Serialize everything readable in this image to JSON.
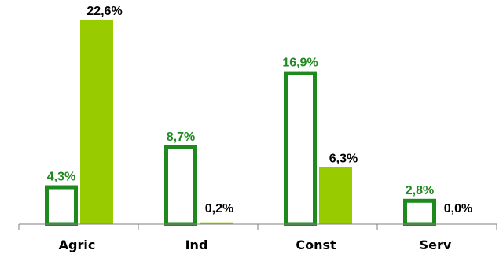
{
  "chart_data": {
    "type": "bar",
    "categories": [
      "Agric",
      "Ind",
      "Const",
      "Serv"
    ],
    "series": [
      {
        "values": [
          4.3,
          8.7,
          16.9,
          2.8
        ],
        "labels": [
          "4,3%",
          "8,7%",
          "16,9%",
          "2,8%"
        ],
        "color": "#1e8a1e",
        "label_color": "#1e8a1e",
        "style": "outline"
      },
      {
        "values": [
          22.6,
          0.2,
          6.3,
          0.0
        ],
        "labels": [
          "22,6%",
          "0,2%",
          "6,3%",
          "0,0%"
        ],
        "color": "#99cc00",
        "label_color": "#000000",
        "style": "filled"
      }
    ],
    "title": "",
    "xlabel": "",
    "ylabel": "",
    "ylim": [
      0,
      22.6
    ],
    "grid": false,
    "legend": "none"
  }
}
